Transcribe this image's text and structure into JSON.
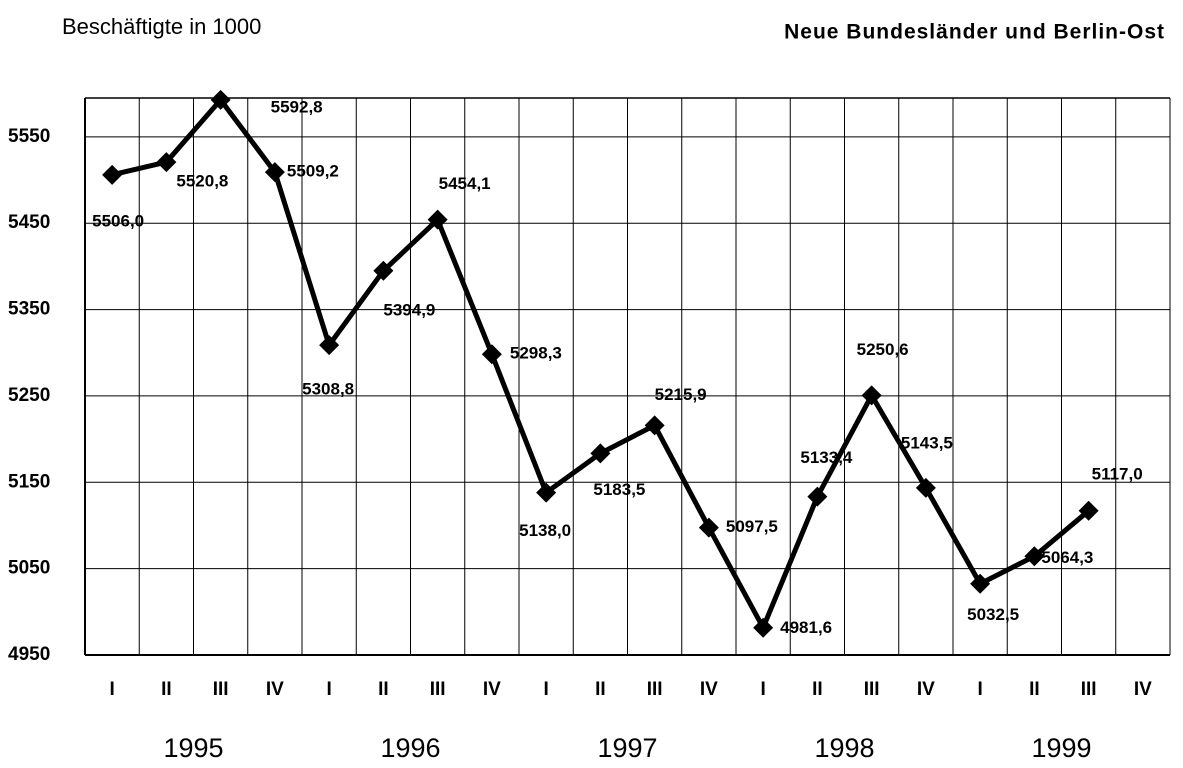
{
  "chart_data": {
    "type": "line",
    "title": "Neue Bundesländer und Berlin-Ost",
    "y_label": "Beschäftigte in 1000",
    "categories": [
      "I",
      "II",
      "III",
      "IV",
      "I",
      "II",
      "III",
      "IV",
      "I",
      "II",
      "III",
      "IV",
      "I",
      "II",
      "III",
      "IV",
      "I",
      "II",
      "III",
      "IV"
    ],
    "groups": [
      "1995",
      "1996",
      "1997",
      "1998",
      "1999"
    ],
    "series": [
      {
        "name": null,
        "color": "#000000",
        "values": [
          5506.0,
          5520.8,
          5592.8,
          5509.2,
          5308.8,
          5394.9,
          5454.1,
          5298.3,
          5138.0,
          5183.5,
          5215.9,
          5097.5,
          4981.6,
          5133.4,
          5250.6,
          5143.5,
          5032.5,
          5064.3,
          5117.0,
          null
        ],
        "value_labels": [
          "5506,0",
          "5520,8",
          "5592,8",
          "5509,2",
          "5308,8",
          "5394,9",
          "5454,1",
          "5298,3",
          "5138,0",
          "5183,5",
          "5215,9",
          "5097,5",
          "4981,6",
          "5133,4",
          "5250,6",
          "5143,5",
          "5032,5",
          "5064,3",
          "5117,0",
          null
        ]
      }
    ],
    "ylim": [
      4950,
      5595
    ],
    "yticks": [
      4950,
      5050,
      5150,
      5250,
      5350,
      5450,
      5550
    ],
    "grid": true
  }
}
